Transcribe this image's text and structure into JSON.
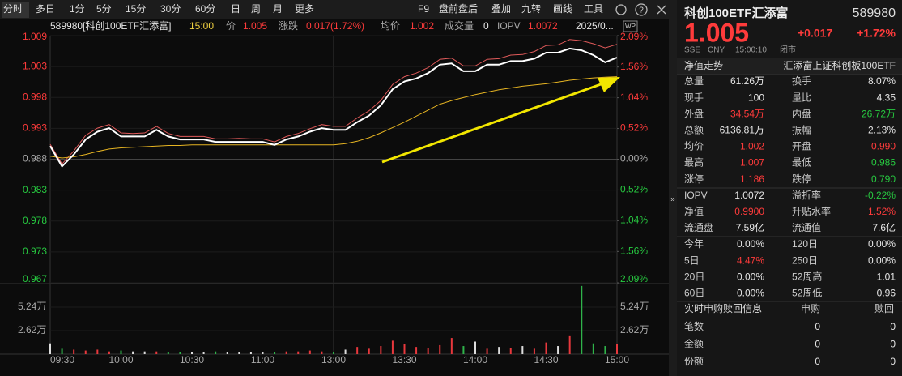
{
  "toolbar": {
    "left": [
      "分时",
      "多日",
      "1分",
      "5分",
      "15分",
      "30分",
      "60分",
      "日",
      "周",
      "月",
      "更多"
    ],
    "right": [
      "F9",
      "盘前盘后",
      "叠加",
      "九转",
      "画线",
      "工具"
    ]
  },
  "info_bar": {
    "code_name": "589980[科创100ETF汇添富]",
    "time": "15:00",
    "price": "1.005",
    "change_label": "涨跌",
    "change": "0.017(1.72%)",
    "avg": "1.002",
    "volume_label": "成交量",
    "volume": "0",
    "iopv": "1.0072",
    "date": "2025/0...",
    "badge": "WP"
  },
  "chart_data": {
    "type": "line",
    "categories": [
      "09:30",
      null,
      null,
      null,
      null,
      null,
      "10:00",
      null,
      null,
      null,
      null,
      null,
      "10:30",
      null,
      null,
      null,
      null,
      null,
      "11:00",
      null,
      null,
      null,
      null,
      null,
      "13:00",
      null,
      null,
      null,
      null,
      null,
      "13:30",
      null,
      null,
      null,
      null,
      null,
      "14:00",
      null,
      null,
      null,
      null,
      null,
      "14:30",
      null,
      null,
      null,
      null,
      null,
      "15:00"
    ],
    "series": [
      {
        "name": "价",
        "color": "#ffffff",
        "values": [
          0.9902,
          0.9868,
          0.9888,
          0.9913,
          0.9926,
          0.9932,
          0.9918,
          0.9918,
          0.9918,
          0.9929,
          0.9918,
          0.9913,
          0.9913,
          0.9913,
          0.9909,
          0.9909,
          0.9909,
          0.9909,
          0.9909,
          0.9904,
          0.9913,
          0.9918,
          0.9926,
          0.9932,
          0.9929,
          0.9929,
          0.9942,
          0.9953,
          0.997,
          0.9997,
          1.001,
          1.0015,
          1.0024,
          1.0038,
          1.004,
          1.0027,
          1.0027,
          1.0038,
          1.0038,
          1.0044,
          1.0044,
          1.0048,
          1.0058,
          1.0058,
          1.0065,
          1.0062,
          1.0054,
          1.0042,
          1.005
        ]
      },
      {
        "name": "均价",
        "color": "#e6b422",
        "values": [
          0.9885,
          0.9882,
          0.9884,
          0.9888,
          0.9893,
          0.9897,
          0.9899,
          0.99,
          0.9901,
          0.9902,
          0.9903,
          0.9903,
          0.9904,
          0.9904,
          0.9904,
          0.9904,
          0.9904,
          0.9904,
          0.9904,
          0.9904,
          0.9904,
          0.9904,
          0.9904,
          0.9904,
          0.9904,
          0.9906,
          0.991,
          0.9916,
          0.9924,
          0.9933,
          0.9942,
          0.9952,
          0.9962,
          0.9972,
          0.9978,
          0.9983,
          0.9988,
          0.9992,
          0.9996,
          0.9999,
          1.0002,
          1.0004,
          1.0006,
          1.0009,
          1.0012,
          1.0014,
          1.0016,
          1.0017,
          1.0018
        ]
      },
      {
        "name": "IOPV",
        "color": "#e05a5a",
        "values": [
          0.9905,
          0.9872,
          0.9894,
          0.992,
          0.9932,
          0.9938,
          0.9924,
          0.9923,
          0.9924,
          0.9935,
          0.9923,
          0.9918,
          0.9918,
          0.9918,
          0.9914,
          0.9914,
          0.9915,
          0.9914,
          0.9914,
          0.9909,
          0.9918,
          0.9923,
          0.9931,
          0.9938,
          0.9935,
          0.9935,
          0.9949,
          0.9961,
          0.9978,
          1.0005,
          1.0018,
          1.0024,
          1.0033,
          1.0047,
          1.0049,
          1.0036,
          1.0036,
          1.0047,
          1.0048,
          1.0054,
          1.0055,
          1.006,
          1.007,
          1.0071,
          1.008,
          1.0078,
          1.0073,
          1.0066,
          1.0072
        ]
      }
    ],
    "ylim": [
      0.96735,
      1.00865
    ],
    "yticks": [
      {
        "value": 1.00865,
        "label": "1.009"
      },
      {
        "value": 1.003488,
        "label": "1.003"
      },
      {
        "value": 0.998325,
        "label": "0.998"
      },
      {
        "value": 0.993163,
        "label": "0.993"
      },
      {
        "value": 0.988,
        "label": "0.988"
      },
      {
        "value": 0.982838,
        "label": "0.983"
      },
      {
        "value": 0.977675,
        "label": "0.978"
      },
      {
        "value": 0.972513,
        "label": "0.973"
      },
      {
        "value": 0.96735,
        "label": "0.967"
      }
    ],
    "y2lim": [
      -2.09,
      2.09
    ],
    "y2ticks": [
      {
        "value": 2.09,
        "label": "2.09%"
      },
      {
        "value": 1.56,
        "label": "1.56%"
      },
      {
        "value": 1.04,
        "label": "1.04%"
      },
      {
        "value": 0.52,
        "label": "0.52%"
      },
      {
        "value": 0,
        "label": "0.00%"
      },
      {
        "value": -0.52,
        "label": "0.52%"
      },
      {
        "value": -1.04,
        "label": "1.04%"
      },
      {
        "value": -1.56,
        "label": "1.56%"
      },
      {
        "value": -2.09,
        "label": "2.09%"
      }
    ],
    "up_color": "#e8383d",
    "down_color": "#2fb34a",
    "flat_color": "#dddddd",
    "volume": {
      "values": [
        1.2,
        0.6,
        0.5,
        0.4,
        0.5,
        0.3,
        0.4,
        0.3,
        0.3,
        0.3,
        0.2,
        0.2,
        0.2,
        0.2,
        0.3,
        0.2,
        0.2,
        0.2,
        0.2,
        0.2,
        0.3,
        0.3,
        0.4,
        0.3,
        0.2,
        0.5,
        0.8,
        0.6,
        0.9,
        1.5,
        1.1,
        0.8,
        0.7,
        1.0,
        1.8,
        0.9,
        1.4,
        0.6,
        0.8,
        0.7,
        0.9,
        0.6,
        1.3,
        0.9,
        2.0,
        7.6,
        1.2,
        0.9,
        1.1
      ],
      "ylim": [
        0,
        7.86
      ],
      "yticks": [
        {
          "value": 5.24,
          "label": "5.24万"
        },
        {
          "value": 2.62,
          "label": "2.62万"
        }
      ]
    }
  },
  "quote": {
    "name": "科创100ETF汇添富",
    "code": "589980",
    "price": "1.005",
    "change": "+0.017",
    "pct": "+1.72%",
    "status": [
      "SSE",
      "CNY",
      "15:00:10",
      "闭市"
    ],
    "tab": "净值走势",
    "fund_name": "汇添富上证科创板100ETF",
    "rows": [
      [
        "总量",
        "61.26万",
        "换手",
        "8.07%"
      ],
      [
        "现手",
        "100",
        "量比",
        "4.35"
      ],
      [
        "外盘",
        "34.54万",
        "内盘",
        "26.72万"
      ],
      [
        "总额",
        "6136.81万",
        "振幅",
        "2.13%"
      ],
      [
        "均价",
        "1.002",
        "开盘",
        "0.990"
      ],
      [
        "最高",
        "1.007",
        "最低",
        "0.986"
      ],
      [
        "涨停",
        "1.186",
        "跌停",
        "0.790"
      ],
      [
        "IOPV",
        "1.0072",
        "溢折率",
        "-0.22%"
      ],
      [
        "净值",
        "0.9900",
        "升贴水率",
        "1.52%"
      ],
      [
        "流通盘",
        "7.59亿",
        "流通值",
        "7.6亿"
      ],
      [
        "今年",
        "0.00%",
        "120日",
        "0.00%"
      ],
      [
        "5日",
        "4.47%",
        "250日",
        "0.00%"
      ],
      [
        "20日",
        "0.00%",
        "52周高",
        "1.01"
      ],
      [
        "60日",
        "0.00%",
        "52周低",
        "0.96"
      ]
    ]
  },
  "subscription": {
    "title": "实时申购赎回信息",
    "columns": [
      "申购",
      "赎回"
    ],
    "rows": [
      [
        "笔数",
        "0",
        "0"
      ],
      [
        "金额",
        "0",
        "0"
      ],
      [
        "份额",
        "0",
        "0"
      ]
    ]
  }
}
